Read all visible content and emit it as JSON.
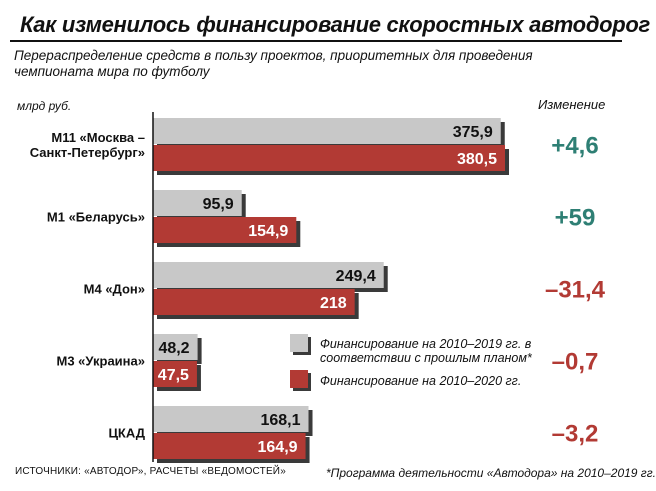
{
  "header": {
    "title": "Как изменилось финансирование скоростных автодорог",
    "subtitle": "Перераспределение средств в пользу проектов, приоритетных для проведения чемпионата мира по футболу"
  },
  "unit_label": "млрд руб.",
  "change_header": "Изменение",
  "legend": {
    "plan_label": "Финансирование на 2010–2019 гг. в соответствии с прошлым планом*",
    "actual_label": "Финансирование на 2010–2020 гг."
  },
  "footer": {
    "sources": "ИСТОЧНИКИ: «АВТОДОР», РАСЧЕТЫ «ВЕДОМОСТЕЙ»",
    "note": "*Программа деятельности «Автодора» на 2010–2019 гг."
  },
  "colors": {
    "plan": "#c8c8c8",
    "actual": "#b23a34",
    "positive": "#2e7f74",
    "negative": "#b23a34"
  },
  "chart_data": {
    "type": "bar",
    "orientation": "horizontal",
    "categories": [
      [
        "М11 «Москва –",
        "Санкт-Петербург»"
      ],
      [
        "М1 «Беларусь»"
      ],
      [
        "М4 «Дон»"
      ],
      [
        "М3 «Украина»"
      ],
      [
        "ЦКАД"
      ]
    ],
    "series": [
      {
        "name": "Финансирование на 2010–2019 гг. в соответствии с прошлым планом*",
        "values": [
          375.9,
          95.9,
          249.4,
          48.2,
          168.1
        ],
        "labels": [
          "375,9",
          "95,9",
          "249,4",
          "48,2",
          "168,1"
        ]
      },
      {
        "name": "Финансирование на 2010–2020 гг.",
        "values": [
          380.5,
          154.9,
          218,
          47.5,
          164.9
        ],
        "labels": [
          "380,5",
          "154,9",
          "218",
          "47,5",
          "164,9"
        ]
      }
    ],
    "change": [
      "+4,6",
      "+59",
      "–31,4",
      "–0,7",
      "–3,2"
    ],
    "change_values": [
      4.6,
      59,
      -31.4,
      -0.7,
      -3.2
    ],
    "xlim": [
      0,
      400
    ],
    "grid": false,
    "legend_position": "center-right"
  }
}
